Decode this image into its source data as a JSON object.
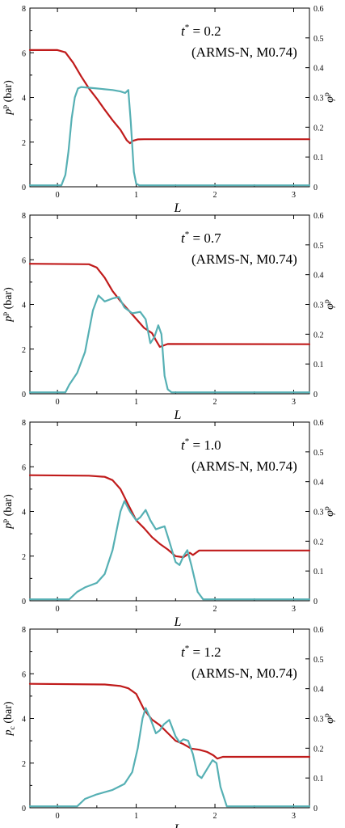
{
  "chart_data": [
    {
      "type": "line",
      "title_lines": [
        "t* = 0.2",
        "(ARMS-N, M0.74)"
      ],
      "xlabel": "L",
      "ylabel_left": "p^p (bar)",
      "ylabel_right": "φ^p",
      "xlim": [
        -0.35,
        3.2
      ],
      "ylim_left": [
        0,
        8
      ],
      "ylim_right": [
        0,
        0.6
      ],
      "xticks": [
        0,
        1,
        2,
        3
      ],
      "yticks_left": [
        0,
        2,
        4,
        6,
        8
      ],
      "yticks_right": [
        0,
        0.1,
        0.2,
        0.3,
        0.4,
        0.5,
        0.6
      ],
      "colors": {
        "pressure": "#c01b1b",
        "volume_fraction": "#56b0b4"
      },
      "series": [
        {
          "axis": "left",
          "x": [
            -0.35,
            0.0,
            0.1,
            0.2,
            0.3,
            0.4,
            0.5,
            0.6,
            0.7,
            0.8,
            0.88,
            0.92,
            0.96,
            1.02,
            1.1,
            3.2
          ],
          "y": [
            6.12,
            6.12,
            6.02,
            5.55,
            4.95,
            4.4,
            3.95,
            3.45,
            2.98,
            2.55,
            2.08,
            1.95,
            2.06,
            2.12,
            2.13,
            2.13
          ]
        },
        {
          "axis": "right",
          "x": [
            -0.35,
            0.05,
            0.1,
            0.14,
            0.18,
            0.22,
            0.26,
            0.3,
            0.5,
            0.7,
            0.8,
            0.86,
            0.9,
            0.93,
            0.97,
            1.0,
            1.04,
            3.2
          ],
          "y": [
            0.005,
            0.005,
            0.04,
            0.12,
            0.23,
            0.3,
            0.33,
            0.335,
            0.33,
            0.325,
            0.32,
            0.315,
            0.325,
            0.22,
            0.05,
            0.01,
            0.005,
            0.005
          ]
        }
      ]
    },
    {
      "type": "line",
      "title_lines": [
        "t* = 0.7",
        "(ARMS-N, M0.74)"
      ],
      "xlabel": "L",
      "ylabel_left": "p^p (bar)",
      "ylabel_right": "φ^p",
      "xlim": [
        -0.35,
        3.2
      ],
      "ylim_left": [
        0,
        8
      ],
      "ylim_right": [
        0,
        0.6
      ],
      "xticks": [
        0,
        1,
        2,
        3
      ],
      "yticks_left": [
        0,
        2,
        4,
        6,
        8
      ],
      "yticks_right": [
        0,
        0.1,
        0.2,
        0.3,
        0.4,
        0.5,
        0.6
      ],
      "colors": {
        "pressure": "#c01b1b",
        "volume_fraction": "#56b0b4"
      },
      "series": [
        {
          "axis": "left",
          "x": [
            -0.35,
            0.4,
            0.5,
            0.6,
            0.7,
            0.8,
            0.9,
            1.0,
            1.1,
            1.2,
            1.25,
            1.3,
            1.4,
            3.2
          ],
          "y": [
            5.82,
            5.8,
            5.65,
            5.2,
            4.6,
            4.15,
            3.75,
            3.35,
            2.95,
            2.72,
            2.4,
            2.1,
            2.23,
            2.22
          ]
        },
        {
          "axis": "right",
          "x": [
            -0.35,
            0.1,
            0.15,
            0.25,
            0.35,
            0.45,
            0.52,
            0.6,
            0.7,
            0.78,
            0.85,
            0.95,
            1.05,
            1.12,
            1.18,
            1.23,
            1.28,
            1.32,
            1.36,
            1.4,
            1.45,
            3.2
          ],
          "y": [
            0.005,
            0.005,
            0.03,
            0.07,
            0.14,
            0.28,
            0.33,
            0.31,
            0.32,
            0.325,
            0.29,
            0.27,
            0.275,
            0.25,
            0.17,
            0.19,
            0.23,
            0.2,
            0.06,
            0.015,
            0.005,
            0.005
          ]
        }
      ]
    },
    {
      "type": "line",
      "title_lines": [
        "t* = 1.0",
        "(ARMS-N, M0.74)"
      ],
      "xlabel": "L",
      "ylabel_left": "p^p (bar)",
      "ylabel_right": "φ^p",
      "xlim": [
        -0.35,
        3.2
      ],
      "ylim_left": [
        0,
        8
      ],
      "ylim_right": [
        0,
        0.6
      ],
      "xticks": [
        0,
        1,
        2,
        3
      ],
      "yticks_left": [
        0,
        2,
        4,
        6,
        8
      ],
      "yticks_right": [
        0,
        0.1,
        0.2,
        0.3,
        0.4,
        0.5,
        0.6
      ],
      "colors": {
        "pressure": "#c01b1b",
        "volume_fraction": "#56b0b4"
      },
      "series": [
        {
          "axis": "left",
          "x": [
            -0.35,
            0.4,
            0.6,
            0.7,
            0.8,
            0.9,
            1.0,
            1.1,
            1.2,
            1.3,
            1.4,
            1.5,
            1.6,
            1.68,
            1.72,
            1.8,
            3.2
          ],
          "y": [
            5.62,
            5.6,
            5.55,
            5.4,
            5.0,
            4.3,
            3.6,
            3.25,
            2.85,
            2.55,
            2.3,
            2.0,
            1.95,
            2.15,
            2.05,
            2.25,
            2.25
          ]
        },
        {
          "axis": "right",
          "x": [
            -0.35,
            0.15,
            0.25,
            0.35,
            0.5,
            0.6,
            0.7,
            0.8,
            0.85,
            0.92,
            1.0,
            1.05,
            1.12,
            1.18,
            1.25,
            1.3,
            1.36,
            1.42,
            1.5,
            1.55,
            1.6,
            1.65,
            1.7,
            1.78,
            1.85,
            3.2
          ],
          "y": [
            0.005,
            0.005,
            0.03,
            0.045,
            0.06,
            0.09,
            0.17,
            0.3,
            0.335,
            0.3,
            0.27,
            0.28,
            0.305,
            0.27,
            0.24,
            0.245,
            0.25,
            0.2,
            0.13,
            0.12,
            0.15,
            0.17,
            0.12,
            0.03,
            0.005,
            0.005
          ]
        }
      ]
    },
    {
      "type": "line",
      "title_lines": [
        "t* = 1.2",
        "(ARMS-N, M0.74)"
      ],
      "xlabel": "L",
      "ylabel_left": "p_c (bar)",
      "ylabel_right": "φ^p",
      "xlim": [
        -0.35,
        3.2
      ],
      "ylim_left": [
        0,
        8
      ],
      "ylim_right": [
        0,
        0.6
      ],
      "xticks": [
        0,
        1,
        2,
        3
      ],
      "yticks_left": [
        0,
        2,
        4,
        6,
        8
      ],
      "yticks_right": [
        0,
        0.1,
        0.2,
        0.3,
        0.4,
        0.5,
        0.6
      ],
      "colors": {
        "pressure": "#c01b1b",
        "volume_fraction": "#56b0b4"
      },
      "series": [
        {
          "axis": "left",
          "x": [
            -0.35,
            0.6,
            0.8,
            0.9,
            1.0,
            1.1,
            1.2,
            1.3,
            1.4,
            1.5,
            1.6,
            1.7,
            1.8,
            1.9,
            1.98,
            2.03,
            2.1,
            3.2
          ],
          "y": [
            5.55,
            5.52,
            5.45,
            5.35,
            5.1,
            4.4,
            3.95,
            3.7,
            3.35,
            3.0,
            2.85,
            2.65,
            2.6,
            2.5,
            2.35,
            2.2,
            2.28,
            2.28
          ]
        },
        {
          "axis": "right",
          "x": [
            -0.35,
            0.25,
            0.35,
            0.5,
            0.7,
            0.85,
            0.95,
            1.02,
            1.08,
            1.12,
            1.18,
            1.25,
            1.3,
            1.35,
            1.42,
            1.5,
            1.55,
            1.6,
            1.66,
            1.72,
            1.78,
            1.83,
            1.9,
            1.97,
            2.02,
            2.07,
            2.15,
            3.2
          ],
          "y": [
            0.005,
            0.005,
            0.03,
            0.045,
            0.06,
            0.08,
            0.12,
            0.2,
            0.3,
            0.335,
            0.3,
            0.25,
            0.26,
            0.28,
            0.295,
            0.24,
            0.22,
            0.23,
            0.225,
            0.18,
            0.11,
            0.1,
            0.13,
            0.16,
            0.15,
            0.07,
            0.005,
            0.005
          ]
        }
      ]
    }
  ]
}
